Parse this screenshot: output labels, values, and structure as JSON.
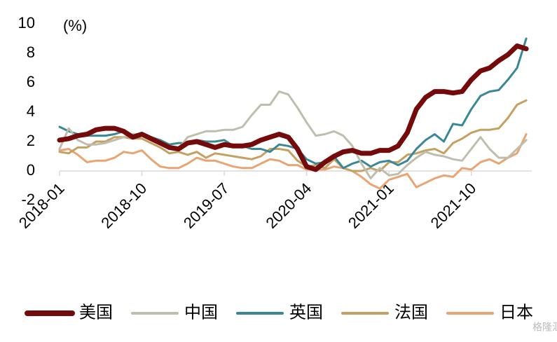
{
  "chart_data": {
    "type": "line",
    "annotation": "(%)",
    "watermark": "格隆汇",
    "categories": [
      "2018-01",
      null,
      null,
      null,
      null,
      null,
      null,
      null,
      null,
      "2018-10",
      null,
      null,
      null,
      null,
      null,
      null,
      null,
      null,
      "2019-07",
      null,
      null,
      null,
      null,
      null,
      null,
      null,
      null,
      "2020-04",
      null,
      null,
      null,
      null,
      null,
      null,
      null,
      null,
      "2021-01",
      null,
      null,
      null,
      null,
      null,
      null,
      null,
      null,
      "2021-10",
      null,
      null,
      null,
      null,
      null,
      null
    ],
    "ylim": [
      -2,
      10
    ],
    "yticks": [
      -2,
      0,
      2,
      4,
      6,
      8,
      10
    ],
    "series": [
      {
        "name": "美国",
        "color": "#750a0a",
        "width": 7,
        "values": [
          2.1,
          2.2,
          2.4,
          2.5,
          2.8,
          2.9,
          2.9,
          2.7,
          2.3,
          2.5,
          2.2,
          1.9,
          1.6,
          1.5,
          1.9,
          2.0,
          1.8,
          1.6,
          1.8,
          1.7,
          1.7,
          1.8,
          2.1,
          2.3,
          2.5,
          2.3,
          1.5,
          0.3,
          0.1,
          0.6,
          1.0,
          1.3,
          1.4,
          1.2,
          1.2,
          1.4,
          1.4,
          1.7,
          2.6,
          4.2,
          5.0,
          5.4,
          5.4,
          5.3,
          5.4,
          6.2,
          6.8,
          7.0,
          7.5,
          7.9,
          8.5,
          8.3
        ]
      },
      {
        "name": "中国",
        "color": "#bfbdad",
        "width": 3,
        "values": [
          1.5,
          2.9,
          2.1,
          1.8,
          1.8,
          1.9,
          2.1,
          2.3,
          2.5,
          2.5,
          2.2,
          1.9,
          1.7,
          1.5,
          2.3,
          2.5,
          2.7,
          2.7,
          2.8,
          2.8,
          3.0,
          3.8,
          4.5,
          4.5,
          5.4,
          5.2,
          4.3,
          3.3,
          2.4,
          2.5,
          2.7,
          2.4,
          1.7,
          0.5,
          -0.5,
          0.2,
          -0.3,
          -0.2,
          0.4,
          0.9,
          1.3,
          1.1,
          1.0,
          0.8,
          0.7,
          1.5,
          2.3,
          1.5,
          0.9,
          0.9,
          1.5,
          2.1
        ]
      },
      {
        "name": "英国",
        "color": "#3a8796",
        "width": 3,
        "values": [
          3.0,
          2.7,
          2.5,
          2.4,
          2.4,
          2.4,
          2.5,
          2.7,
          2.4,
          2.4,
          2.3,
          2.1,
          1.8,
          1.9,
          1.9,
          2.1,
          2.0,
          2.0,
          2.1,
          1.7,
          1.7,
          1.5,
          1.5,
          1.3,
          1.8,
          1.7,
          1.5,
          0.8,
          0.5,
          0.6,
          1.0,
          0.2,
          0.5,
          0.7,
          0.3,
          0.6,
          0.7,
          0.4,
          0.7,
          1.5,
          2.1,
          2.5,
          2.0,
          3.2,
          3.1,
          4.2,
          5.1,
          5.4,
          5.5,
          6.2,
          7.0,
          9.0
        ]
      },
      {
        "name": "法国",
        "color": "#c4a062",
        "width": 3,
        "values": [
          1.3,
          1.2,
          1.6,
          1.6,
          2.0,
          2.0,
          2.3,
          2.3,
          2.2,
          2.2,
          1.9,
          1.6,
          1.2,
          1.3,
          1.1,
          1.3,
          0.9,
          1.2,
          1.1,
          1.0,
          0.9,
          0.8,
          1.0,
          1.5,
          1.5,
          1.4,
          0.7,
          0.3,
          0.4,
          0.2,
          0.8,
          0.2,
          0.0,
          0.0,
          0.2,
          0.0,
          0.6,
          0.6,
          1.1,
          1.2,
          1.4,
          1.5,
          1.2,
          1.9,
          2.2,
          2.6,
          2.8,
          2.8,
          2.9,
          3.6,
          4.5,
          4.8
        ]
      },
      {
        "name": "日本",
        "color": "#e9a474",
        "width": 3,
        "values": [
          1.4,
          1.5,
          1.1,
          0.6,
          0.7,
          0.7,
          0.9,
          1.3,
          1.2,
          1.4,
          0.8,
          0.3,
          0.2,
          0.2,
          0.5,
          0.9,
          0.7,
          0.7,
          0.5,
          0.3,
          0.2,
          0.2,
          0.5,
          0.8,
          0.7,
          0.4,
          0.4,
          0.1,
          0.1,
          0.1,
          0.3,
          0.2,
          0.0,
          -0.4,
          -0.9,
          -1.2,
          -0.6,
          -0.4,
          -0.2,
          -1.1,
          -0.8,
          -0.5,
          -0.3,
          -0.4,
          0.2,
          0.1,
          0.6,
          0.8,
          0.5,
          0.9,
          1.2,
          2.5
        ]
      }
    ]
  }
}
